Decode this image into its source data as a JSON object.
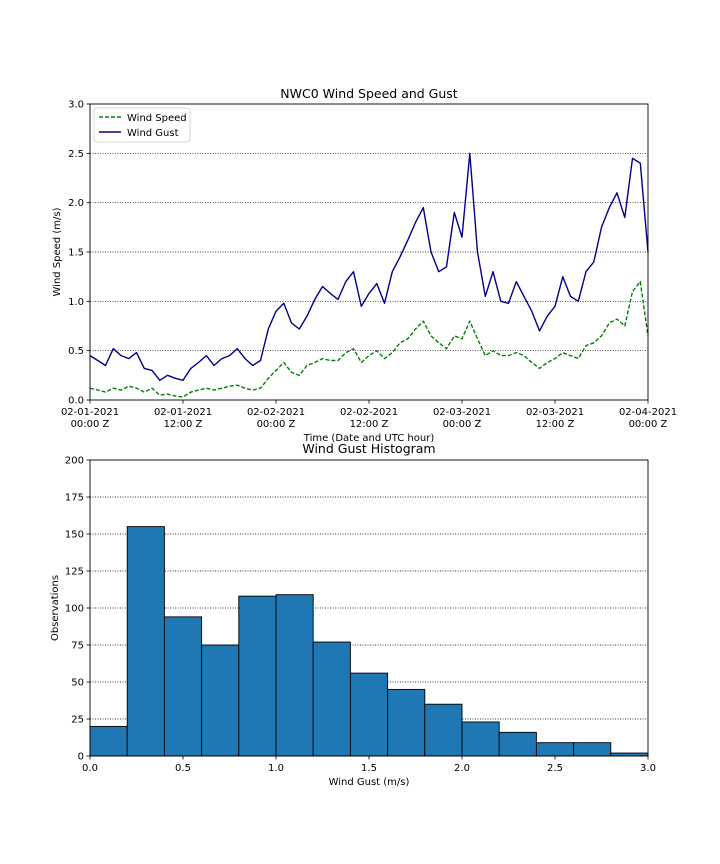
{
  "chart_data": [
    {
      "type": "line",
      "title": "NWC0 Wind Speed and Gust",
      "xlabel": "Time (Date and UTC hour)",
      "ylabel": "Wind Speed (m/s)",
      "xlim": [
        "2021-02-01 00:00",
        "2021-02-04 00:00"
      ],
      "ylim": [
        0,
        3.0
      ],
      "grid": "y",
      "legend_position": "top-left",
      "x_ticks": [
        {
          "line1": "02-01-2021",
          "line2": "00:00 Z"
        },
        {
          "line1": "02-01-2021",
          "line2": "12:00 Z"
        },
        {
          "line1": "02-02-2021",
          "line2": "00:00 Z"
        },
        {
          "line1": "02-02-2021",
          "line2": "12:00 Z"
        },
        {
          "line1": "02-03-2021",
          "line2": "00:00 Z"
        },
        {
          "line1": "02-03-2021",
          "line2": "12:00 Z"
        },
        {
          "line1": "02-04-2021",
          "line2": "00:00 Z"
        }
      ],
      "y_ticks": [
        "0.0",
        "0.5",
        "1.0",
        "1.5",
        "2.0",
        "2.5",
        "3.0"
      ],
      "x_hours": [
        0,
        1,
        2,
        3,
        4,
        5,
        6,
        7,
        8,
        9,
        10,
        11,
        12,
        13,
        14,
        15,
        16,
        17,
        18,
        19,
        20,
        21,
        22,
        23,
        24,
        25,
        26,
        27,
        28,
        29,
        30,
        31,
        32,
        33,
        34,
        35,
        36,
        37,
        38,
        39,
        40,
        41,
        42,
        43,
        44,
        45,
        46,
        47,
        48,
        49,
        50,
        51,
        52,
        53,
        54,
        55,
        56,
        57,
        58,
        59,
        60,
        61,
        62,
        63,
        64,
        65,
        66,
        67,
        68,
        69,
        70,
        71,
        72
      ],
      "series": [
        {
          "name": "Wind Speed",
          "color": "#008000",
          "style": "dashed",
          "values": [
            0.12,
            0.1,
            0.08,
            0.12,
            0.1,
            0.14,
            0.12,
            0.08,
            0.12,
            0.05,
            0.06,
            0.04,
            0.03,
            0.08,
            0.1,
            0.12,
            0.1,
            0.12,
            0.14,
            0.15,
            0.12,
            0.1,
            0.12,
            0.22,
            0.3,
            0.38,
            0.28,
            0.25,
            0.35,
            0.38,
            0.42,
            0.4,
            0.4,
            0.48,
            0.52,
            0.38,
            0.45,
            0.5,
            0.42,
            0.48,
            0.58,
            0.62,
            0.72,
            0.8,
            0.65,
            0.58,
            0.52,
            0.65,
            0.62,
            0.8,
            0.62,
            0.45,
            0.5,
            0.45,
            0.45,
            0.48,
            0.45,
            0.38,
            0.32,
            0.38,
            0.42,
            0.48,
            0.45,
            0.42,
            0.55,
            0.58,
            0.65,
            0.78,
            0.82,
            0.75,
            1.1,
            1.2,
            0.65
          ]
        },
        {
          "name": "Wind Gust",
          "color": "#00008b",
          "style": "solid",
          "values": [
            0.45,
            0.4,
            0.35,
            0.52,
            0.45,
            0.42,
            0.48,
            0.32,
            0.3,
            0.2,
            0.25,
            0.22,
            0.2,
            0.32,
            0.38,
            0.45,
            0.35,
            0.42,
            0.45,
            0.52,
            0.42,
            0.35,
            0.4,
            0.72,
            0.9,
            0.98,
            0.78,
            0.72,
            0.85,
            1.02,
            1.15,
            1.08,
            1.02,
            1.2,
            1.3,
            0.95,
            1.08,
            1.18,
            0.98,
            1.3,
            1.45,
            1.62,
            1.8,
            1.95,
            1.5,
            1.3,
            1.35,
            1.9,
            1.65,
            2.5,
            1.5,
            1.05,
            1.3,
            1.0,
            0.98,
            1.2,
            1.05,
            0.9,
            0.7,
            0.85,
            0.95,
            1.25,
            1.05,
            1.0,
            1.3,
            1.4,
            1.75,
            1.95,
            2.1,
            1.85,
            2.45,
            2.4,
            1.5
          ]
        }
      ]
    },
    {
      "type": "bar",
      "title": "Wind Gust Histogram",
      "xlabel": "Wind Gust (m/s)",
      "ylabel": "Observations",
      "xlim": [
        0,
        3.0
      ],
      "ylim": [
        0,
        200
      ],
      "grid": "y",
      "bar_color": "#1f77b4",
      "x_ticks": [
        "0.0",
        "0.5",
        "1.0",
        "1.5",
        "2.0",
        "2.5",
        "3.0"
      ],
      "y_ticks": [
        "0",
        "25",
        "50",
        "75",
        "100",
        "125",
        "150",
        "175",
        "200"
      ],
      "bins": [
        {
          "from": 0.0,
          "to": 0.2,
          "count": 20
        },
        {
          "from": 0.2,
          "to": 0.4,
          "count": 155
        },
        {
          "from": 0.4,
          "to": 0.6,
          "count": 94
        },
        {
          "from": 0.6,
          "to": 0.8,
          "count": 75
        },
        {
          "from": 0.8,
          "to": 1.0,
          "count": 108
        },
        {
          "from": 1.0,
          "to": 1.2,
          "count": 109
        },
        {
          "from": 1.2,
          "to": 1.4,
          "count": 77
        },
        {
          "from": 1.4,
          "to": 1.6,
          "count": 56
        },
        {
          "from": 1.6,
          "to": 1.8,
          "count": 45
        },
        {
          "from": 1.8,
          "to": 2.0,
          "count": 35
        },
        {
          "from": 2.0,
          "to": 2.2,
          "count": 23
        },
        {
          "from": 2.2,
          "to": 2.4,
          "count": 16
        },
        {
          "from": 2.4,
          "to": 2.6,
          "count": 9
        },
        {
          "from": 2.6,
          "to": 2.8,
          "count": 9
        },
        {
          "from": 2.8,
          "to": 3.0,
          "count": 2
        }
      ]
    }
  ]
}
